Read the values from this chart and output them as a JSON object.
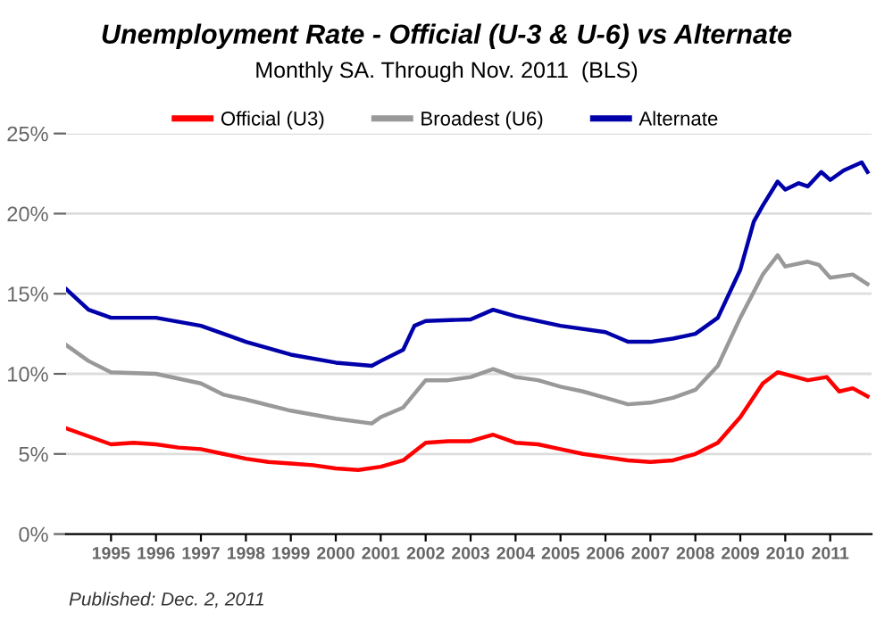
{
  "chart_data": {
    "type": "line",
    "title": "Unemployment Rate - Official (U-3 & U-6) vs Alternate",
    "subtitle": "Monthly SA. Through Nov. 2011  (BLS)",
    "annotations": [
      "Published: Dec. 2, 2011"
    ],
    "xlim": [
      1994,
      2011.92
    ],
    "xticks": [
      {
        "value": 1995,
        "label": "1995"
      },
      {
        "value": 1996,
        "label": "1996"
      },
      {
        "value": 1997,
        "label": "1997"
      },
      {
        "value": 1998,
        "label": "1998"
      },
      {
        "value": 1999,
        "label": "1999"
      },
      {
        "value": 2000,
        "label": "2000"
      },
      {
        "value": 2001,
        "label": "2001"
      },
      {
        "value": 2002,
        "label": "2002"
      },
      {
        "value": 2003,
        "label": "2003"
      },
      {
        "value": 2004,
        "label": "2004"
      },
      {
        "value": 2005,
        "label": "2005"
      },
      {
        "value": 2006,
        "label": "2006"
      },
      {
        "value": 2007,
        "label": "2007"
      },
      {
        "value": 2008,
        "label": "2008"
      },
      {
        "value": 2009,
        "label": "2009"
      },
      {
        "value": 2010,
        "label": "2010"
      },
      {
        "value": 2011,
        "label": "2011"
      }
    ],
    "ylim": [
      0,
      25
    ],
    "yticks": [
      {
        "value": 0,
        "label": "0%"
      },
      {
        "value": 5,
        "label": "5%"
      },
      {
        "value": 10,
        "label": "10%"
      },
      {
        "value": 15,
        "label": "15%"
      },
      {
        "value": 20,
        "label": "20%"
      },
      {
        "value": 25,
        "label": "25%"
      }
    ],
    "grid": "y",
    "legend": "top",
    "marker": "none",
    "line_style": "solid",
    "series": [
      {
        "name": "Official (U3)",
        "color": "#ff0000",
        "x": [
          1994.0,
          1994.5,
          1995.0,
          1995.5,
          1996.0,
          1996.5,
          1997.0,
          1997.5,
          1998.0,
          1998.5,
          1999.0,
          1999.5,
          2000.0,
          2000.5,
          2001.0,
          2001.5,
          2002.0,
          2002.5,
          2003.0,
          2003.5,
          2004.0,
          2004.5,
          2005.0,
          2005.5,
          2006.0,
          2006.5,
          2007.0,
          2007.5,
          2008.0,
          2008.5,
          2009.0,
          2009.5,
          2009.83,
          2010.5,
          2010.92,
          2011.2,
          2011.5,
          2011.83
        ],
        "values": [
          6.6,
          6.1,
          5.6,
          5.7,
          5.6,
          5.4,
          5.3,
          5.0,
          4.7,
          4.5,
          4.4,
          4.3,
          4.1,
          4.0,
          4.2,
          4.6,
          5.7,
          5.8,
          5.8,
          6.2,
          5.7,
          5.6,
          5.3,
          5.0,
          4.8,
          4.6,
          4.5,
          4.6,
          5.0,
          5.7,
          7.3,
          9.4,
          10.1,
          9.6,
          9.8,
          8.9,
          9.1,
          8.6
        ]
      },
      {
        "name": "Broadest (U6)",
        "color": "#999999",
        "x": [
          1994.0,
          1994.5,
          1995.0,
          1996.0,
          1997.0,
          1997.5,
          1998.0,
          1999.0,
          2000.0,
          2000.8,
          2001.0,
          2001.5,
          2002.0,
          2002.5,
          2003.0,
          2003.5,
          2004.0,
          2004.5,
          2005.0,
          2005.5,
          2006.0,
          2006.5,
          2007.0,
          2007.5,
          2008.0,
          2008.5,
          2009.0,
          2009.5,
          2009.83,
          2010.0,
          2010.5,
          2010.75,
          2011.0,
          2011.5,
          2011.83
        ],
        "values": [
          11.8,
          10.8,
          10.1,
          10.0,
          9.4,
          8.7,
          8.4,
          7.7,
          7.2,
          6.9,
          7.3,
          7.9,
          9.6,
          9.6,
          9.8,
          10.3,
          9.8,
          9.6,
          9.2,
          8.9,
          8.5,
          8.1,
          8.2,
          8.5,
          9.0,
          10.5,
          13.5,
          16.2,
          17.4,
          16.7,
          17.0,
          16.8,
          16.0,
          16.2,
          15.6
        ]
      },
      {
        "name": "Alternate",
        "color": "#0000aa",
        "x": [
          1994.0,
          1994.5,
          1995.0,
          1996.0,
          1997.0,
          1998.0,
          1999.0,
          2000.0,
          2000.8,
          2001.0,
          2001.5,
          2001.75,
          2002.0,
          2003.0,
          2003.5,
          2004.0,
          2005.0,
          2006.0,
          2006.5,
          2007.0,
          2007.5,
          2008.0,
          2008.5,
          2009.0,
          2009.3,
          2009.5,
          2009.83,
          2010.0,
          2010.3,
          2010.5,
          2010.8,
          2011.0,
          2011.3,
          2011.7,
          2011.83
        ],
        "values": [
          15.3,
          14.0,
          13.5,
          13.5,
          13.0,
          12.0,
          11.2,
          10.7,
          10.5,
          10.8,
          11.5,
          13.0,
          13.3,
          13.4,
          14.0,
          13.6,
          13.0,
          12.6,
          12.0,
          12.0,
          12.2,
          12.5,
          13.5,
          16.5,
          19.5,
          20.5,
          22.0,
          21.5,
          21.9,
          21.7,
          22.6,
          22.1,
          22.7,
          23.2,
          22.6
        ]
      }
    ]
  }
}
